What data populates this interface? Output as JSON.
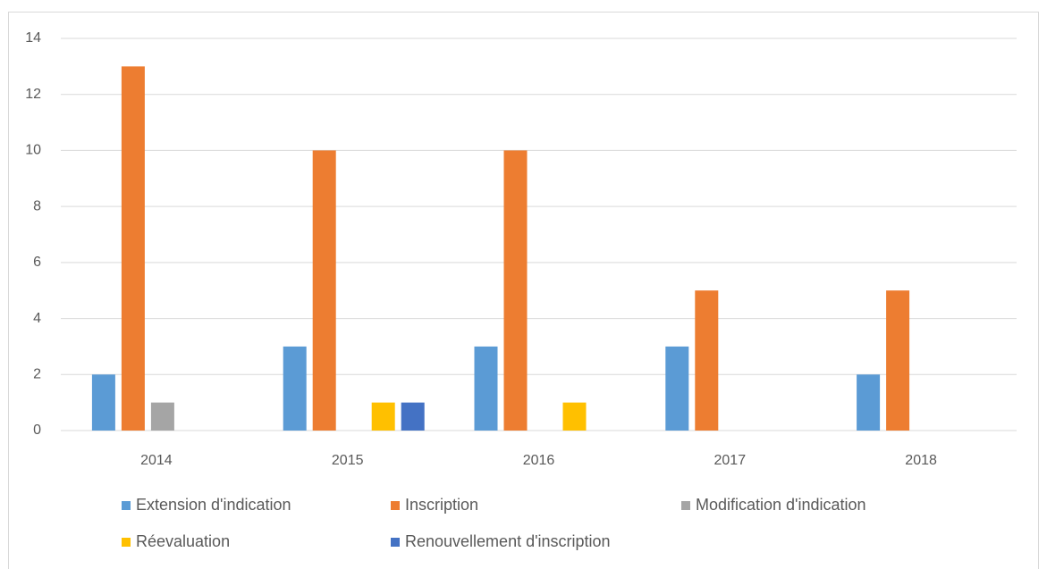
{
  "chart_data": {
    "type": "bar",
    "categories": [
      "2014",
      "2015",
      "2016",
      "2017",
      "2018"
    ],
    "series": [
      {
        "name": "Extension d'indication",
        "color": "#5b9bd5",
        "values": [
          2,
          3,
          3,
          3,
          2
        ]
      },
      {
        "name": "Inscription",
        "color": "#ed7d31",
        "values": [
          13,
          10,
          10,
          5,
          5
        ]
      },
      {
        "name": "Modification d'indication",
        "color": "#a5a5a5",
        "values": [
          1,
          0,
          0,
          0,
          0
        ]
      },
      {
        "name": "Réevaluation",
        "color": "#ffc000",
        "values": [
          0,
          1,
          1,
          0,
          0
        ]
      },
      {
        "name": "Renouvellement d'inscription",
        "color": "#4472c4",
        "values": [
          0,
          1,
          0,
          0,
          0
        ]
      }
    ],
    "ylim": [
      0,
      14
    ],
    "yticks": [
      0,
      2,
      4,
      6,
      8,
      10,
      12,
      14
    ],
    "grid": true,
    "legend": "bottom"
  }
}
